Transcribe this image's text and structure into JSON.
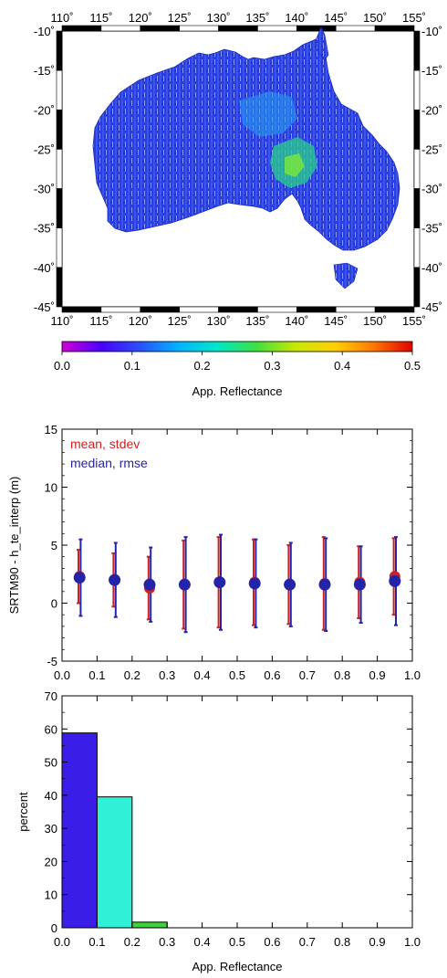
{
  "map": {
    "lon_ticks": [
      "110˚",
      "115˚",
      "120˚",
      "125˚",
      "130˚",
      "135˚",
      "140˚",
      "145˚",
      "150˚",
      "155˚"
    ],
    "lat_ticks": [
      "-10˚",
      "-15˚",
      "-20˚",
      "-25˚",
      "-30˚",
      "-35˚",
      "-40˚",
      "-45˚"
    ],
    "colorbar": {
      "ticks": [
        "0.0",
        "0.1",
        "0.2",
        "0.3",
        "0.4",
        "0.5"
      ],
      "label": "App. Reflectance",
      "colors": [
        "#d400d4",
        "#4a00ff",
        "#2a50ff",
        "#00b4ff",
        "#00e8c8",
        "#40e040",
        "#c8e800",
        "#ffd000",
        "#ff7800",
        "#e00000"
      ]
    },
    "land_color": "#3048d8"
  },
  "chart_data": [
    {
      "type": "scatter",
      "title": "",
      "xlabel": "",
      "ylabel": "SRTM90 - h_te_interp (m)",
      "xlim": [
        0.0,
        1.0
      ],
      "ylim": [
        -5,
        15
      ],
      "x_ticks": [
        "0.0",
        "0.1",
        "0.2",
        "0.3",
        "0.4",
        "0.5",
        "0.6",
        "0.7",
        "0.8",
        "0.9",
        "1.0"
      ],
      "y_ticks": [
        "-5",
        "0",
        "5",
        "10",
        "15"
      ],
      "legend": [
        "mean, stdev",
        "median, rmse"
      ],
      "x": [
        0.05,
        0.15,
        0.25,
        0.35,
        0.45,
        0.55,
        0.65,
        0.75,
        0.85,
        0.95
      ],
      "series": [
        {
          "name": "mean, stdev",
          "color": "#cc2222",
          "values": [
            2.3,
            2.0,
            1.3,
            1.6,
            1.8,
            1.8,
            1.6,
            1.7,
            1.8,
            2.3
          ],
          "errors": [
            2.3,
            2.3,
            2.7,
            3.8,
            3.9,
            3.7,
            3.4,
            4.0,
            3.1,
            3.3
          ]
        },
        {
          "name": "median, rmse",
          "color": "#2424a8",
          "values": [
            2.2,
            2.0,
            1.6,
            1.6,
            1.8,
            1.7,
            1.6,
            1.6,
            1.6,
            1.9
          ],
          "errors": [
            3.3,
            3.2,
            3.2,
            4.1,
            4.1,
            3.8,
            3.6,
            4.0,
            3.3,
            3.8
          ]
        }
      ]
    },
    {
      "type": "bar",
      "title": "",
      "xlabel": "App. Reflectance",
      "ylabel": "percent",
      "xlim": [
        0.0,
        1.0
      ],
      "ylim": [
        0,
        70
      ],
      "x_ticks": [
        "0.0",
        "0.1",
        "0.2",
        "0.3",
        "0.4",
        "0.5",
        "0.6",
        "0.7",
        "0.8",
        "0.9",
        "1.0"
      ],
      "y_ticks": [
        "0",
        "10",
        "20",
        "30",
        "40",
        "50",
        "60",
        "70"
      ],
      "bins": [
        [
          0.0,
          0.1
        ],
        [
          0.1,
          0.2
        ],
        [
          0.2,
          0.3
        ]
      ],
      "values": [
        58.8,
        39.5,
        1.7
      ],
      "colors": [
        "#3a1ee8",
        "#30f0d8",
        "#40d040"
      ]
    }
  ]
}
